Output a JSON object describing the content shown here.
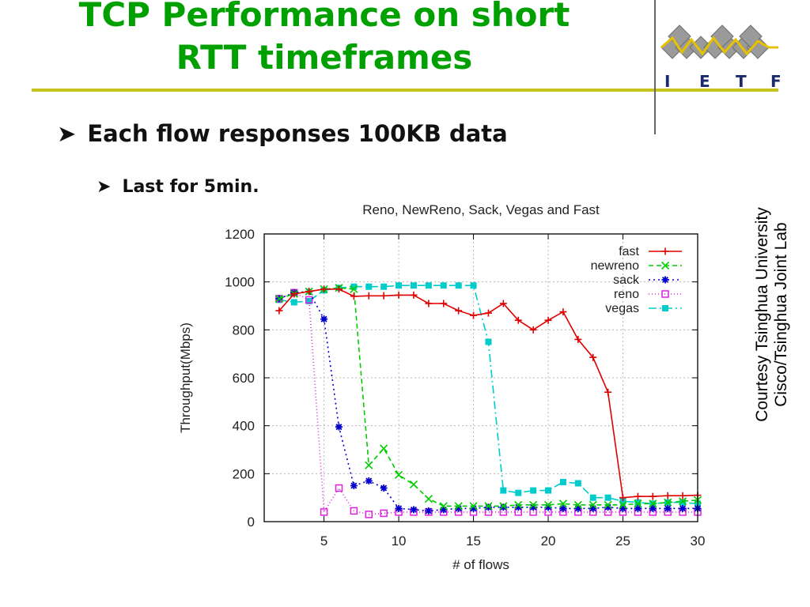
{
  "slide": {
    "title_line1": "TCP Performance on short",
    "title_line2": "RTT timeframes",
    "bullets": [
      {
        "text": "Each flow responses 100KB data"
      },
      {
        "text": "Last for 5min."
      }
    ],
    "courtesy_line1": "Courtesy Tsinghua University",
    "courtesy_line2": "Cisco/Tsinghua Joint Lab",
    "logo_letters": [
      "I",
      "E",
      "T",
      "F"
    ],
    "colors": {
      "title": "#00a000",
      "rule": "#c7c41e"
    }
  },
  "chart_data": {
    "type": "line",
    "title": "Reno, NewReno, Sack, Vegas and Fast",
    "xlabel": "# of flows",
    "ylabel": "Throughput(Mbps)",
    "xlim": [
      1,
      30
    ],
    "ylim": [
      0,
      1200
    ],
    "xticks": [
      5,
      10,
      15,
      20,
      25,
      30
    ],
    "yticks": [
      0,
      200,
      400,
      600,
      800,
      1000,
      1200
    ],
    "grid": true,
    "legend_position": "top-right",
    "x": [
      2,
      3,
      4,
      5,
      6,
      7,
      8,
      9,
      10,
      11,
      12,
      13,
      14,
      15,
      16,
      17,
      18,
      19,
      20,
      21,
      22,
      23,
      24,
      25,
      26,
      27,
      28,
      29,
      30
    ],
    "series": [
      {
        "name": "fast",
        "color": "#e00000",
        "dash": "",
        "marker": "plus",
        "values": [
          880,
          950,
          960,
          970,
          970,
          940,
          942,
          942,
          945,
          945,
          910,
          910,
          880,
          860,
          870,
          910,
          840,
          800,
          840,
          875,
          760,
          685,
          540,
          100,
          105,
          105,
          108,
          108,
          110
        ]
      },
      {
        "name": "newreno",
        "color": "#00cc00",
        "dash": "6,4",
        "marker": "x",
        "values": [
          930,
          950,
          960,
          970,
          975,
          970,
          235,
          305,
          195,
          155,
          95,
          65,
          65,
          65,
          65,
          65,
          70,
          70,
          70,
          75,
          70,
          70,
          70,
          70,
          75,
          75,
          80,
          85,
          90
        ]
      },
      {
        "name": "sack",
        "color": "#0000cc",
        "dash": "2,4",
        "marker": "star",
        "values": [
          930,
          955,
          960,
          845,
          395,
          150,
          170,
          140,
          55,
          50,
          45,
          50,
          55,
          55,
          60,
          60,
          60,
          60,
          60,
          55,
          55,
          55,
          60,
          55,
          55,
          55,
          55,
          55,
          55
        ]
      },
      {
        "name": "reno",
        "color": "#e020e0",
        "dash": "1,3",
        "marker": "square",
        "values": [
          930,
          955,
          925,
          40,
          140,
          45,
          30,
          35,
          40,
          40,
          40,
          40,
          40,
          40,
          40,
          40,
          40,
          40,
          40,
          40,
          40,
          40,
          40,
          40,
          40,
          40,
          40,
          40,
          40
        ]
      },
      {
        "name": "vegas",
        "color": "#00cccc",
        "dash": "10,4,2,4",
        "marker": "filled-square",
        "values": [
          925,
          915,
          920,
          965,
          975,
          980,
          980,
          980,
          985,
          985,
          985,
          985,
          985,
          985,
          750,
          130,
          120,
          130,
          130,
          165,
          160,
          100,
          100,
          85,
          80,
          75,
          80,
          80,
          75
        ]
      }
    ]
  }
}
